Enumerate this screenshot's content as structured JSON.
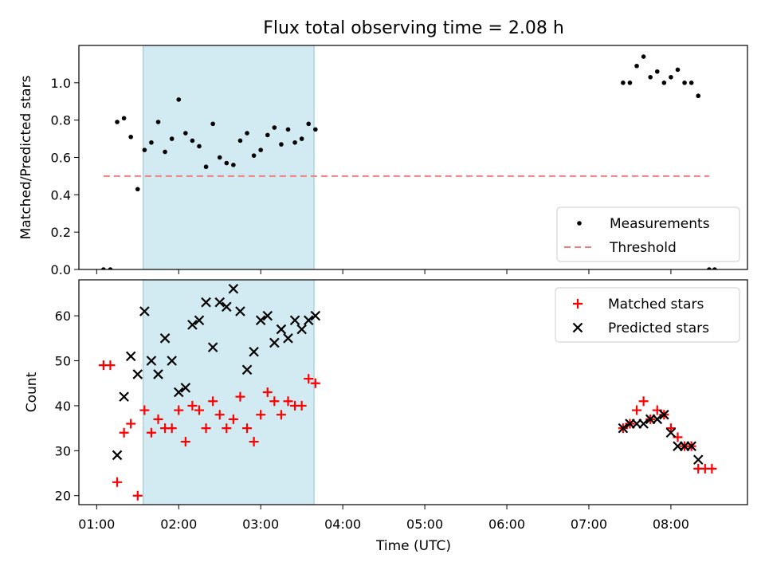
{
  "figure": {
    "title": "Flux total observing time = 2.08 h",
    "xlabel": "Time (UTC)",
    "xticks": [
      "01:00",
      "02:00",
      "03:00",
      "04:00",
      "05:00",
      "06:00",
      "07:00",
      "08:00"
    ],
    "shaded_region": {
      "start": "01:34",
      "end": "03:39",
      "color": "#add8e6"
    }
  },
  "chart_data": [
    {
      "type": "scatter",
      "ylabel": "Matched/Predicted stars",
      "xlim": [
        "00:47",
        "08:56"
      ],
      "ylim": [
        0,
        1.2
      ],
      "yticks": [
        "0.0",
        "0.2",
        "0.4",
        "0.6",
        "0.8",
        "1.0"
      ],
      "legend": {
        "position": "bottom-right",
        "entries": [
          "Measurements",
          "Threshold"
        ]
      },
      "series": [
        {
          "name": "Measurements",
          "marker": "dot",
          "color": "#000000",
          "points": [
            [
              "01:05",
              0.0
            ],
            [
              "01:10",
              0.0
            ],
            [
              "01:15",
              0.79
            ],
            [
              "01:20",
              0.81
            ],
            [
              "01:25",
              0.71
            ],
            [
              "01:30",
              0.43
            ],
            [
              "01:35",
              0.64
            ],
            [
              "01:40",
              0.68
            ],
            [
              "01:45",
              0.79
            ],
            [
              "01:50",
              0.63
            ],
            [
              "01:55",
              0.7
            ],
            [
              "02:00",
              0.91
            ],
            [
              "02:05",
              0.73
            ],
            [
              "02:10",
              0.69
            ],
            [
              "02:15",
              0.66
            ],
            [
              "02:20",
              0.55
            ],
            [
              "02:25",
              0.78
            ],
            [
              "02:30",
              0.6
            ],
            [
              "02:35",
              0.57
            ],
            [
              "02:40",
              0.56
            ],
            [
              "02:45",
              0.69
            ],
            [
              "02:50",
              0.73
            ],
            [
              "02:55",
              0.61
            ],
            [
              "03:00",
              0.64
            ],
            [
              "03:05",
              0.72
            ],
            [
              "03:10",
              0.76
            ],
            [
              "03:15",
              0.67
            ],
            [
              "03:20",
              0.75
            ],
            [
              "03:25",
              0.68
            ],
            [
              "03:30",
              0.7
            ],
            [
              "03:35",
              0.78
            ],
            [
              "03:40",
              0.75
            ],
            [
              "07:25",
              1.0
            ],
            [
              "07:30",
              1.0
            ],
            [
              "07:35",
              1.09
            ],
            [
              "07:40",
              1.14
            ],
            [
              "07:45",
              1.03
            ],
            [
              "07:50",
              1.06
            ],
            [
              "07:55",
              1.0
            ],
            [
              "08:00",
              1.03
            ],
            [
              "08:05",
              1.07
            ],
            [
              "08:10",
              1.0
            ],
            [
              "08:15",
              1.0
            ],
            [
              "08:20",
              0.93
            ],
            [
              "08:28",
              0.0
            ],
            [
              "08:32",
              0.0
            ]
          ]
        },
        {
          "name": "Threshold",
          "marker": "dashed-line",
          "color": "#f08080",
          "points": [
            [
              "01:05",
              0.5
            ],
            [
              "08:28",
              0.5
            ]
          ]
        }
      ]
    },
    {
      "type": "scatter",
      "ylabel": "Count",
      "xlim": [
        "00:47",
        "08:56"
      ],
      "ylim": [
        18,
        68
      ],
      "yticks": [
        "20",
        "30",
        "40",
        "50",
        "60"
      ],
      "legend": {
        "position": "top-right",
        "entries": [
          "Matched stars",
          "Predicted stars"
        ]
      },
      "series": [
        {
          "name": "Matched stars",
          "marker": "plus",
          "color": "#ff0000",
          "points": [
            [
              "01:05",
              49
            ],
            [
              "01:10",
              49
            ],
            [
              "01:15",
              23
            ],
            [
              "01:20",
              34
            ],
            [
              "01:25",
              36
            ],
            [
              "01:30",
              20
            ],
            [
              "01:35",
              39
            ],
            [
              "01:40",
              34
            ],
            [
              "01:45",
              37
            ],
            [
              "01:50",
              35
            ],
            [
              "01:55",
              35
            ],
            [
              "02:00",
              39
            ],
            [
              "02:05",
              32
            ],
            [
              "02:10",
              40
            ],
            [
              "02:15",
              39
            ],
            [
              "02:20",
              35
            ],
            [
              "02:25",
              41
            ],
            [
              "02:30",
              38
            ],
            [
              "02:35",
              35
            ],
            [
              "02:40",
              37
            ],
            [
              "02:45",
              42
            ],
            [
              "02:50",
              35
            ],
            [
              "02:55",
              32
            ],
            [
              "03:00",
              38
            ],
            [
              "03:05",
              43
            ],
            [
              "03:10",
              41
            ],
            [
              "03:15",
              38
            ],
            [
              "03:20",
              41
            ],
            [
              "03:25",
              40
            ],
            [
              "03:30",
              40
            ],
            [
              "03:35",
              46
            ],
            [
              "03:40",
              45
            ],
            [
              "07:25",
              35
            ],
            [
              "07:30",
              36
            ],
            [
              "07:35",
              39
            ],
            [
              "07:40",
              41
            ],
            [
              "07:45",
              37
            ],
            [
              "07:50",
              39
            ],
            [
              "07:55",
              38
            ],
            [
              "08:00",
              35
            ],
            [
              "08:05",
              33
            ],
            [
              "08:10",
              31
            ],
            [
              "08:15",
              31
            ],
            [
              "08:20",
              26
            ],
            [
              "08:25",
              26
            ],
            [
              "08:30",
              26
            ]
          ]
        },
        {
          "name": "Predicted stars",
          "marker": "x",
          "color": "#000000",
          "points": [
            [
              "01:15",
              29
            ],
            [
              "01:20",
              42
            ],
            [
              "01:25",
              51
            ],
            [
              "01:30",
              47
            ],
            [
              "01:35",
              61
            ],
            [
              "01:40",
              50
            ],
            [
              "01:45",
              47
            ],
            [
              "01:50",
              55
            ],
            [
              "01:55",
              50
            ],
            [
              "02:00",
              43
            ],
            [
              "02:05",
              44
            ],
            [
              "02:10",
              58
            ],
            [
              "02:15",
              59
            ],
            [
              "02:20",
              63
            ],
            [
              "02:25",
              53
            ],
            [
              "02:30",
              63
            ],
            [
              "02:35",
              62
            ],
            [
              "02:40",
              66
            ],
            [
              "02:45",
              61
            ],
            [
              "02:50",
              48
            ],
            [
              "02:55",
              52
            ],
            [
              "03:00",
              59
            ],
            [
              "03:05",
              60
            ],
            [
              "03:10",
              54
            ],
            [
              "03:15",
              57
            ],
            [
              "03:20",
              55
            ],
            [
              "03:25",
              59
            ],
            [
              "03:30",
              57
            ],
            [
              "03:35",
              59
            ],
            [
              "03:40",
              60
            ],
            [
              "07:25",
              35
            ],
            [
              "07:30",
              36
            ],
            [
              "07:35",
              36
            ],
            [
              "07:40",
              36
            ],
            [
              "07:45",
              37
            ],
            [
              "07:50",
              37
            ],
            [
              "07:55",
              38
            ],
            [
              "08:00",
              34
            ],
            [
              "08:05",
              31
            ],
            [
              "08:10",
              31
            ],
            [
              "08:15",
              31
            ],
            [
              "08:20",
              28
            ]
          ]
        }
      ]
    }
  ]
}
